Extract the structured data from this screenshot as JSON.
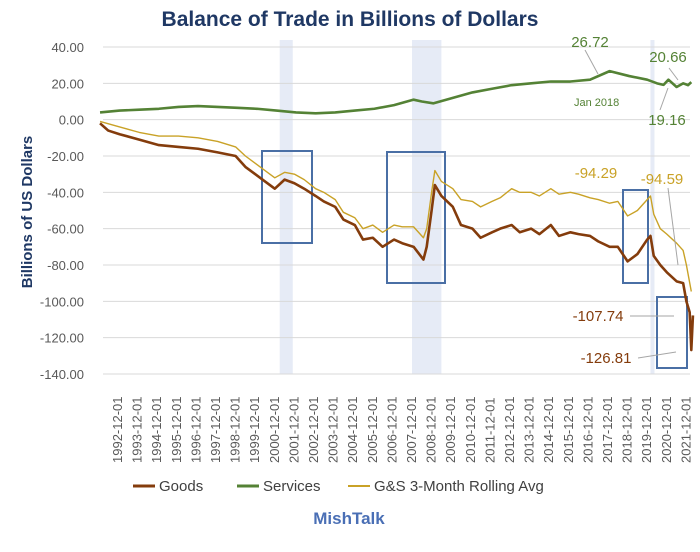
{
  "chart_data": {
    "type": "line",
    "title": "Balance of Trade in Billions of Dollars",
    "ylabel": "Billions of US Dollars",
    "xlabel": "",
    "ylim": [
      -140,
      40
    ],
    "yticks": [
      "40.00",
      "20.00",
      "0.00",
      "-20.00",
      "-40.00",
      "-60.00",
      "-80.00",
      "-100.00",
      "-120.00",
      "-140.00"
    ],
    "xticks": [
      "1992-12-01",
      "1993-12-01",
      "1994-12-01",
      "1995-12-01",
      "1996-12-01",
      "1997-12-01",
      "1998-12-01",
      "1999-12-01",
      "2000-12-01",
      "2001-12-01",
      "2002-12-01",
      "2003-12-01",
      "2004-12-01",
      "2005-12-01",
      "2006-12-01",
      "2007-12-01",
      "2008-12-01",
      "2009-12-01",
      "2010-12-01",
      "2011-12-01",
      "2012-12-01",
      "2013-12-01",
      "2014-12-01",
      "2015-12-01",
      "2016-12-01",
      "2017-12-01",
      "2018-12-01",
      "2019-12-01",
      "2020-12-01",
      "2021-12-01"
    ],
    "grid": true,
    "legend": "bottom",
    "recession_shading": [
      [
        "2001-03",
        "2001-11"
      ],
      [
        "2007-12",
        "2009-06"
      ],
      [
        "2020-02",
        "2020-04"
      ]
    ],
    "series": [
      {
        "name": "Goods",
        "color": "#843c0c",
        "points": [
          [
            "1992-01",
            -2
          ],
          [
            "1992-06",
            -6
          ],
          [
            "1993-01",
            -8
          ],
          [
            "1994-01",
            -11
          ],
          [
            "1995-01",
            -14
          ],
          [
            "1996-01",
            -15
          ],
          [
            "1997-01",
            -16
          ],
          [
            "1998-01",
            -18
          ],
          [
            "1998-12",
            -20
          ],
          [
            "1999-06",
            -26
          ],
          [
            "2000-06",
            -34
          ],
          [
            "2000-12",
            -38
          ],
          [
            "2001-06",
            -33
          ],
          [
            "2001-12",
            -35
          ],
          [
            "2002-06",
            -38
          ],
          [
            "2003-01",
            -42
          ],
          [
            "2003-06",
            -45
          ],
          [
            "2004-01",
            -48
          ],
          [
            "2004-06",
            -55
          ],
          [
            "2005-01",
            -58
          ],
          [
            "2005-06",
            -66
          ],
          [
            "2005-12",
            -65
          ],
          [
            "2006-06",
            -70
          ],
          [
            "2007-01",
            -66
          ],
          [
            "2007-06",
            -68
          ],
          [
            "2008-01",
            -70
          ],
          [
            "2008-07",
            -77
          ],
          [
            "2008-09",
            -70
          ],
          [
            "2008-12",
            -50
          ],
          [
            "2009-02",
            -36
          ],
          [
            "2009-06",
            -42
          ],
          [
            "2010-01",
            -48
          ],
          [
            "2010-06",
            -58
          ],
          [
            "2011-01",
            -60
          ],
          [
            "2011-06",
            -65
          ],
          [
            "2012-01",
            -62
          ],
          [
            "2012-06",
            -60
          ],
          [
            "2013-01",
            -58
          ],
          [
            "2013-06",
            -62
          ],
          [
            "2014-01",
            -60
          ],
          [
            "2014-06",
            -63
          ],
          [
            "2015-01",
            -58
          ],
          [
            "2015-06",
            -64
          ],
          [
            "2016-01",
            -62
          ],
          [
            "2016-06",
            -63
          ],
          [
            "2017-01",
            -64
          ],
          [
            "2017-06",
            -67
          ],
          [
            "2018-01",
            -70
          ],
          [
            "2018-06",
            -70
          ],
          [
            "2018-12",
            -78
          ],
          [
            "2019-06",
            -74
          ],
          [
            "2019-12",
            -66
          ],
          [
            "2020-02",
            -64
          ],
          [
            "2020-04",
            -75
          ],
          [
            "2020-08",
            -80
          ],
          [
            "2020-12",
            -84
          ],
          [
            "2021-06",
            -89
          ],
          [
            "2021-10",
            -90
          ],
          [
            "2021-12",
            -100
          ],
          [
            "2022-02",
            -106
          ],
          [
            "2022-03",
            -126.81
          ],
          [
            "2022-04",
            -107.74
          ]
        ]
      },
      {
        "name": "Services",
        "color": "#548235",
        "points": [
          [
            "1992-01",
            4
          ],
          [
            "1993-01",
            5
          ],
          [
            "1994-01",
            5.5
          ],
          [
            "1995-01",
            6
          ],
          [
            "1996-01",
            7
          ],
          [
            "1997-01",
            7.5
          ],
          [
            "1998-01",
            7
          ],
          [
            "1999-01",
            6.5
          ],
          [
            "2000-01",
            6
          ],
          [
            "2001-01",
            5
          ],
          [
            "2002-01",
            4
          ],
          [
            "2003-01",
            3.5
          ],
          [
            "2004-01",
            4
          ],
          [
            "2005-01",
            5
          ],
          [
            "2006-01",
            6
          ],
          [
            "2007-01",
            8
          ],
          [
            "2008-01",
            11
          ],
          [
            "2008-06",
            10
          ],
          [
            "2009-01",
            9
          ],
          [
            "2010-01",
            12
          ],
          [
            "2011-01",
            15
          ],
          [
            "2012-01",
            17
          ],
          [
            "2013-01",
            19
          ],
          [
            "2014-01",
            20
          ],
          [
            "2015-01",
            21
          ],
          [
            "2016-01",
            21
          ],
          [
            "2017-01",
            22
          ],
          [
            "2018-01",
            26.72
          ],
          [
            "2019-01",
            24
          ],
          [
            "2019-12",
            22
          ],
          [
            "2020-06",
            20
          ],
          [
            "2020-10",
            19.16
          ],
          [
            "2021-01",
            22
          ],
          [
            "2021-06",
            18
          ],
          [
            "2021-10",
            20
          ],
          [
            "2022-01",
            19
          ],
          [
            "2022-03",
            20.66
          ]
        ]
      },
      {
        "name": "G&S 3-Month Rolling Avg",
        "color": "#c9a227",
        "points": [
          [
            "1992-01",
            -1
          ],
          [
            "1993-01",
            -4
          ],
          [
            "1994-01",
            -7
          ],
          [
            "1995-01",
            -9
          ],
          [
            "1996-01",
            -9
          ],
          [
            "1997-01",
            -10
          ],
          [
            "1998-01",
            -12
          ],
          [
            "1998-12",
            -15
          ],
          [
            "1999-06",
            -20
          ],
          [
            "2000-06",
            -28
          ],
          [
            "2000-12",
            -32
          ],
          [
            "2001-06",
            -29
          ],
          [
            "2001-12",
            -30
          ],
          [
            "2002-06",
            -33
          ],
          [
            "2003-01",
            -38
          ],
          [
            "2003-06",
            -40
          ],
          [
            "2004-01",
            -44
          ],
          [
            "2004-06",
            -51
          ],
          [
            "2005-01",
            -54
          ],
          [
            "2005-06",
            -60
          ],
          [
            "2005-12",
            -58
          ],
          [
            "2006-06",
            -62
          ],
          [
            "2007-01",
            -58
          ],
          [
            "2007-06",
            -59
          ],
          [
            "2008-01",
            -59
          ],
          [
            "2008-07",
            -65
          ],
          [
            "2008-09",
            -60
          ],
          [
            "2008-12",
            -40
          ],
          [
            "2009-02",
            -28
          ],
          [
            "2009-06",
            -34
          ],
          [
            "2010-01",
            -38
          ],
          [
            "2010-06",
            -44
          ],
          [
            "2011-01",
            -45
          ],
          [
            "2011-06",
            -48
          ],
          [
            "2012-01",
            -45
          ],
          [
            "2012-06",
            -43
          ],
          [
            "2013-01",
            -38
          ],
          [
            "2013-06",
            -40
          ],
          [
            "2014-01",
            -40
          ],
          [
            "2014-06",
            -42
          ],
          [
            "2015-01",
            -38
          ],
          [
            "2015-06",
            -41
          ],
          [
            "2016-01",
            -40
          ],
          [
            "2016-06",
            -41
          ],
          [
            "2017-01",
            -43
          ],
          [
            "2017-06",
            -44
          ],
          [
            "2018-01",
            -46
          ],
          [
            "2018-06",
            -45
          ],
          [
            "2018-12",
            -53
          ],
          [
            "2019-06",
            -50
          ],
          [
            "2019-12",
            -44
          ],
          [
            "2020-02",
            -42
          ],
          [
            "2020-04",
            -52
          ],
          [
            "2020-08",
            -60
          ],
          [
            "2020-12",
            -63
          ],
          [
            "2021-06",
            -68
          ],
          [
            "2021-10",
            -72
          ],
          [
            "2021-12",
            -80
          ],
          [
            "2022-03",
            -94.59
          ]
        ]
      }
    ],
    "annotations": {
      "services_peak": "26.72",
      "services_peak_date": "Jan 2018",
      "services_last": "20.66",
      "services_low": "19.16",
      "avg_2019": "-94.29",
      "avg_last": "-94.59",
      "goods_apr": "-107.74",
      "goods_mar": "-126.81"
    }
  },
  "footer": {
    "brand": "MishTalk"
  }
}
